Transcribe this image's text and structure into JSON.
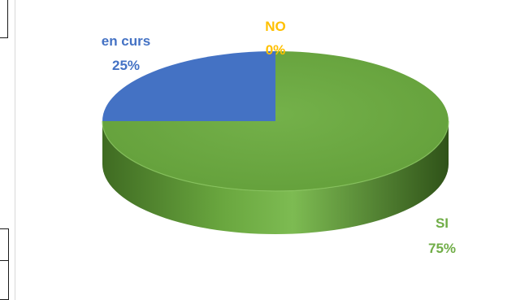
{
  "chart_data": {
    "type": "pie",
    "style": "3d",
    "title": "",
    "categories": [
      "SI",
      "en curs",
      "NO"
    ],
    "values": [
      75,
      25,
      0
    ],
    "labels": [
      {
        "name": "NO",
        "pct": "0%",
        "color": "#ffc000"
      },
      {
        "name": "en curs",
        "pct": "25%",
        "color": "#4472c4"
      },
      {
        "name": "SI",
        "pct": "75%",
        "color": "#70ad47"
      }
    ],
    "colors": {
      "SI": "#70ad47",
      "en curs": "#4472c4",
      "NO": "#ffc000"
    }
  }
}
